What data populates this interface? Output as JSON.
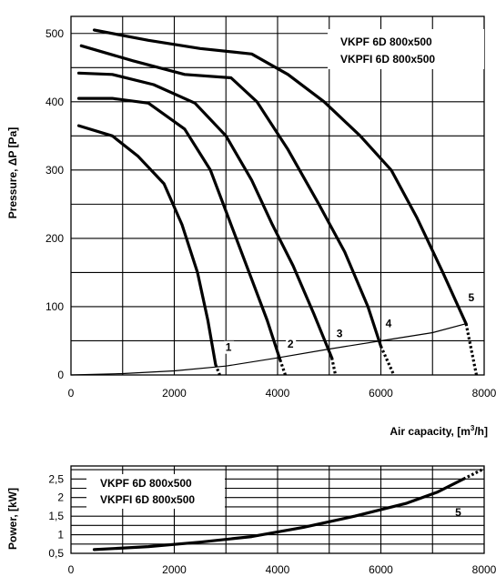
{
  "chart_data": [
    {
      "type": "line",
      "title_lines": [
        "VKPF 6D 800x500",
        "VKPFI 6D 800x500"
      ],
      "xlabel": "Air capacity, [m³/h]",
      "ylabel": "Pressure, ΔP [Pa]",
      "xlim": [
        0,
        8000
      ],
      "ylim": [
        0,
        525
      ],
      "x_ticks": [
        "0",
        "2000",
        "4000",
        "6000",
        "8000"
      ],
      "y_ticks": [
        "0",
        "100",
        "200",
        "300",
        "400",
        "500"
      ],
      "grid": true,
      "series": [
        {
          "name": "1",
          "points": [
            [
              150,
              365
            ],
            [
              800,
              350
            ],
            [
              1300,
              320
            ],
            [
              1800,
              280
            ],
            [
              2150,
              220
            ],
            [
              2450,
              150
            ],
            [
              2650,
              80
            ],
            [
              2800,
              15
            ]
          ],
          "dotted_end": [
            [
              2800,
              15
            ],
            [
              2880,
              0
            ]
          ],
          "label_at": [
            3050,
            35
          ]
        },
        {
          "name": "2",
          "points": [
            [
              150,
              405
            ],
            [
              800,
              405
            ],
            [
              1500,
              398
            ],
            [
              2200,
              360
            ],
            [
              2700,
              300
            ],
            [
              3100,
              220
            ],
            [
              3500,
              140
            ],
            [
              3800,
              80
            ],
            [
              4050,
              22
            ]
          ],
          "dotted_end": [
            [
              4050,
              22
            ],
            [
              4150,
              0
            ]
          ],
          "label_at": [
            4250,
            40
          ]
        },
        {
          "name": "3",
          "points": [
            [
              150,
              442
            ],
            [
              800,
              440
            ],
            [
              1600,
              425
            ],
            [
              2400,
              398
            ],
            [
              3000,
              350
            ],
            [
              3500,
              285
            ],
            [
              3900,
              220
            ],
            [
              4300,
              160
            ],
            [
              4700,
              90
            ],
            [
              5050,
              25
            ]
          ],
          "dotted_end": [
            [
              5050,
              25
            ],
            [
              5120,
              0
            ]
          ],
          "label_at": [
            5200,
            55
          ]
        },
        {
          "name": "4",
          "points": [
            [
              200,
              482
            ],
            [
              1200,
              460
            ],
            [
              2200,
              440
            ],
            [
              3100,
              435
            ],
            [
              3600,
              400
            ],
            [
              4200,
              330
            ],
            [
              4800,
              250
            ],
            [
              5300,
              180
            ],
            [
              5750,
              100
            ],
            [
              6000,
              42
            ]
          ],
          "dotted_end": [
            [
              6000,
              42
            ],
            [
              6250,
              0
            ]
          ],
          "label_at": [
            6150,
            70
          ]
        },
        {
          "name": "5",
          "points": [
            [
              450,
              505
            ],
            [
              1500,
              490
            ],
            [
              2500,
              478
            ],
            [
              3500,
              470
            ],
            [
              4200,
              440
            ],
            [
              4900,
              400
            ],
            [
              5600,
              350
            ],
            [
              6200,
              300
            ],
            [
              6700,
              230
            ],
            [
              7200,
              150
            ],
            [
              7650,
              75
            ]
          ],
          "dotted_end": [
            [
              7650,
              75
            ],
            [
              7850,
              0
            ]
          ],
          "label_at": [
            7750,
            108
          ]
        }
      ],
      "system_curve": [
        [
          0,
          0
        ],
        [
          1000,
          2
        ],
        [
          2000,
          6
        ],
        [
          3000,
          13
        ],
        [
          4000,
          25
        ],
        [
          5000,
          38
        ],
        [
          6000,
          50
        ],
        [
          7000,
          62
        ],
        [
          7650,
          75
        ]
      ]
    },
    {
      "type": "line",
      "title_lines": [
        "VKPF 6D 800x500",
        "VKPFI 6D 800x500"
      ],
      "xlabel": "",
      "ylabel": "Power, [kW]",
      "xlim": [
        0,
        8000
      ],
      "ylim": [
        0.5,
        2.85
      ],
      "x_ticks": [
        "0",
        "2000",
        "4000",
        "6000",
        "8000"
      ],
      "y_ticks": [
        "0,5",
        "1",
        "1,5",
        "2",
        "2,5"
      ],
      "grid": true,
      "series": [
        {
          "name": "5",
          "points": [
            [
              450,
              0.6
            ],
            [
              1500,
              0.68
            ],
            [
              2500,
              0.8
            ],
            [
              3500,
              0.95
            ],
            [
              4500,
              1.2
            ],
            [
              5500,
              1.5
            ],
            [
              6500,
              1.85
            ],
            [
              7100,
              2.15
            ],
            [
              7600,
              2.5
            ]
          ],
          "dotted_end": [
            [
              7600,
              2.5
            ],
            [
              8000,
              2.78
            ]
          ],
          "label_at": [
            7850,
            1.8
          ]
        }
      ]
    }
  ]
}
